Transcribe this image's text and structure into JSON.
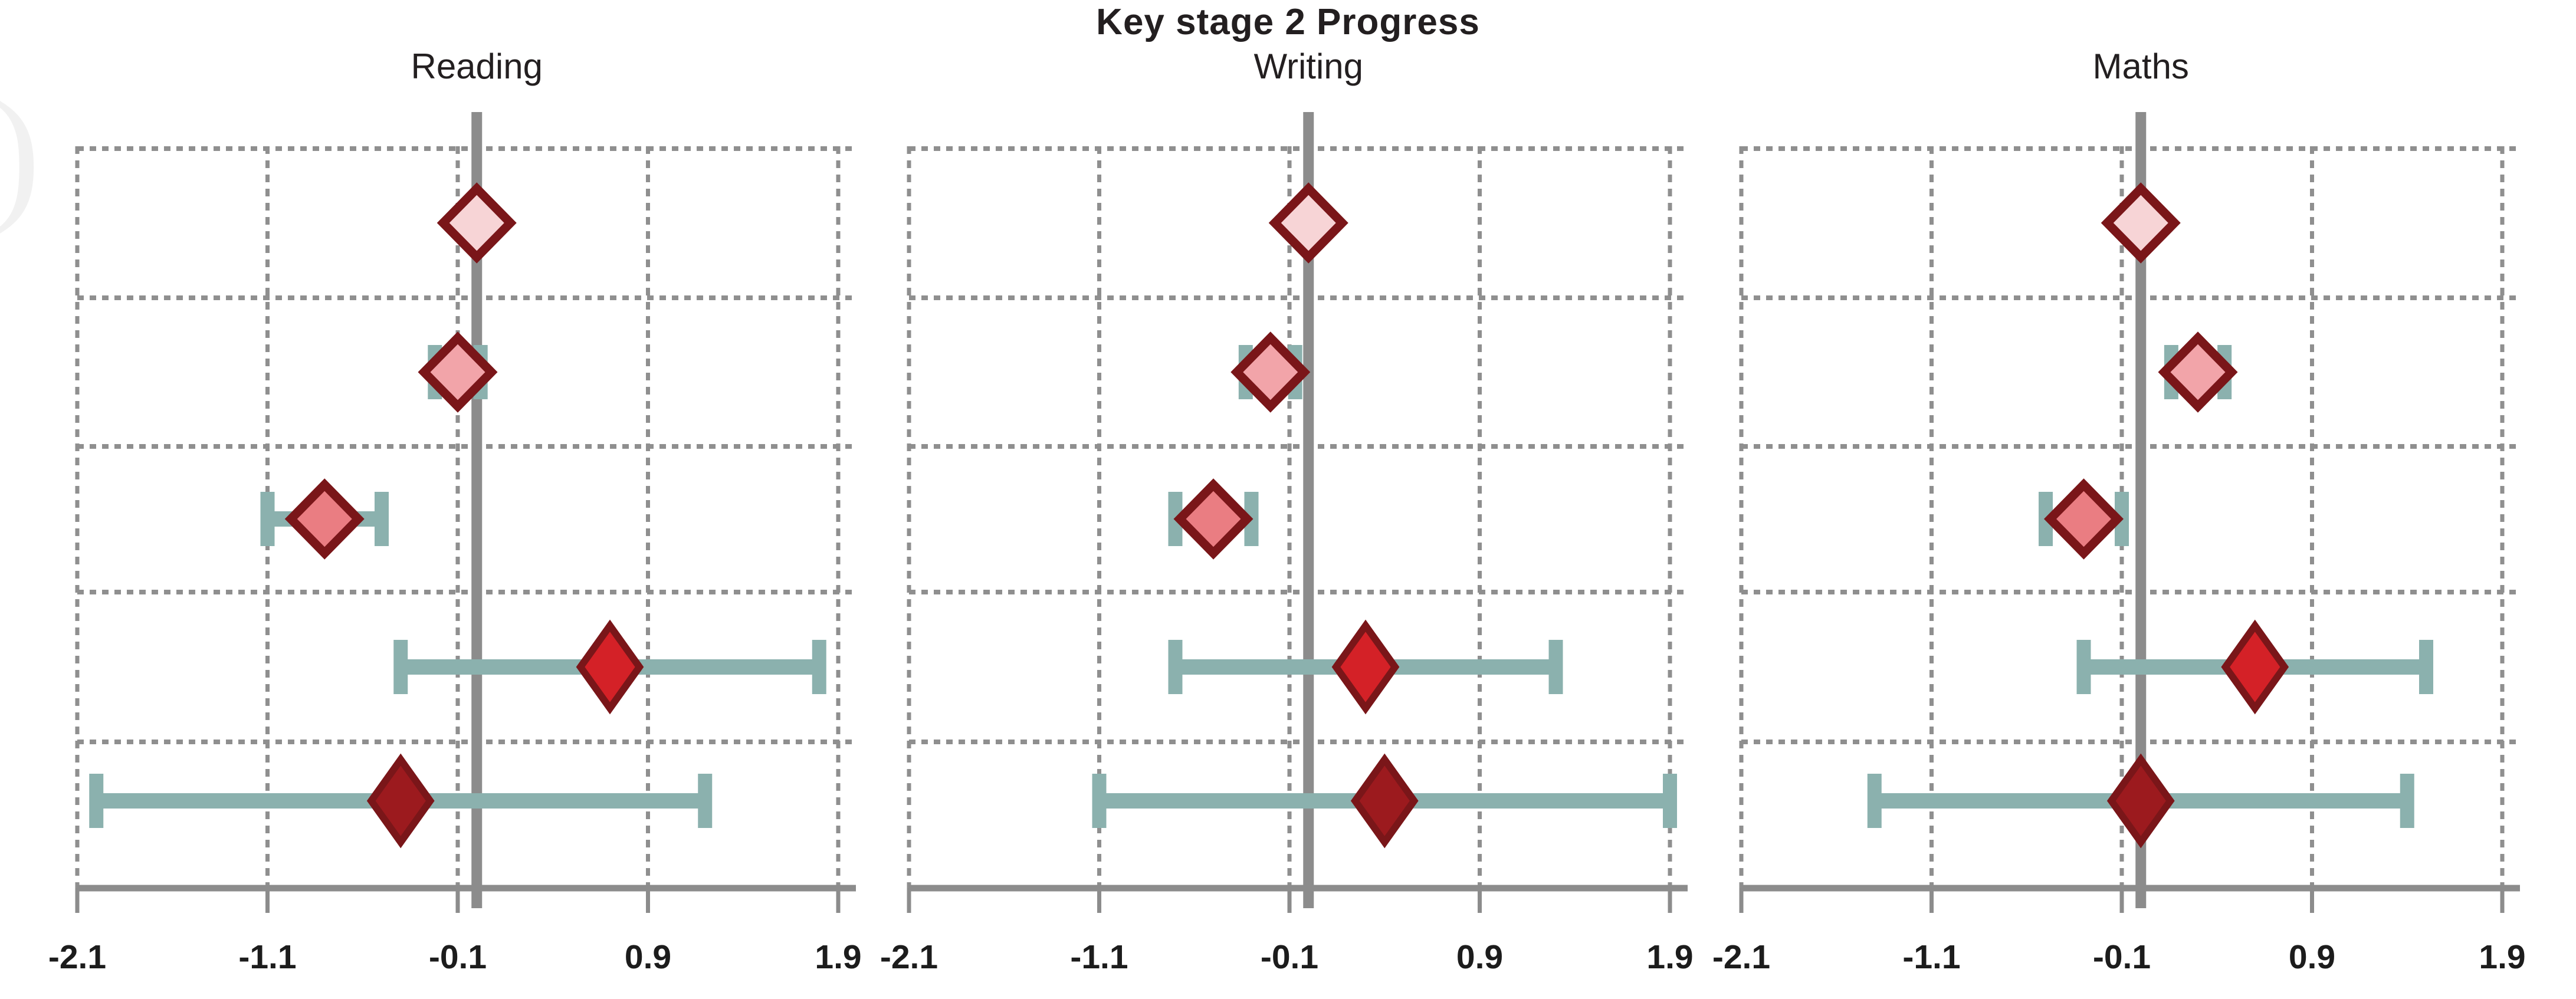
{
  "chart_data": {
    "type": "scatter",
    "subtype": "forest-plot-diamond-markers-with-ci-bars",
    "title": "Key stage 2 Progress",
    "x_ticks": [
      -2.1,
      -1.1,
      -0.1,
      0.9,
      1.9
    ],
    "tick_labels": [
      "-2.1",
      "-1.1",
      "-0.1",
      "0.9",
      "1.9"
    ],
    "xlim": [
      -2.1,
      2.0
    ],
    "reference_line_x": 0,
    "grid": true,
    "rows_per_panel": 5,
    "legend": "none",
    "panels": [
      {
        "title": "Reading",
        "rows": [
          {
            "mean": 0.0,
            "ci": null
          },
          {
            "mean": -0.1,
            "ci": [
              -0.22,
              0.02
            ]
          },
          {
            "mean": -0.8,
            "ci": [
              -1.1,
              -0.5
            ]
          },
          {
            "mean": 0.7,
            "ci": [
              -0.4,
              1.8
            ]
          },
          {
            "mean": -0.4,
            "ci": [
              -2.0,
              1.2
            ]
          }
        ]
      },
      {
        "title": "Writing",
        "rows": [
          {
            "mean": 0.0,
            "ci": null
          },
          {
            "mean": -0.2,
            "ci": [
              -0.33,
              -0.07
            ]
          },
          {
            "mean": -0.5,
            "ci": [
              -0.7,
              -0.3
            ]
          },
          {
            "mean": 0.3,
            "ci": [
              -0.7,
              1.3
            ]
          },
          {
            "mean": 0.4,
            "ci": [
              -1.1,
              1.9
            ]
          }
        ]
      },
      {
        "title": "Maths",
        "rows": [
          {
            "mean": 0.0,
            "ci": null
          },
          {
            "mean": 0.3,
            "ci": [
              0.16,
              0.44
            ]
          },
          {
            "mean": -0.3,
            "ci": [
              -0.5,
              -0.1
            ]
          },
          {
            "mean": 0.6,
            "ci": [
              -0.3,
              1.5
            ]
          },
          {
            "mean": 0.0,
            "ci": [
              -1.4,
              1.4
            ]
          }
        ]
      }
    ],
    "colors": {
      "row_marker_fills": [
        "#f7d4d6",
        "#f2a4a9",
        "#ea7d82",
        "#d42127",
        "#9c1a1e"
      ],
      "marker_border": "#7a1619",
      "ci_bar": "#8bb1ae",
      "reference_line": "#8c8c8c",
      "axis_line": "#8c8c8c",
      "gridline": "#8f8f8f",
      "tick_label": "#1c1c1c",
      "title_text": "#231f20"
    },
    "artifact_glyph": ")"
  }
}
